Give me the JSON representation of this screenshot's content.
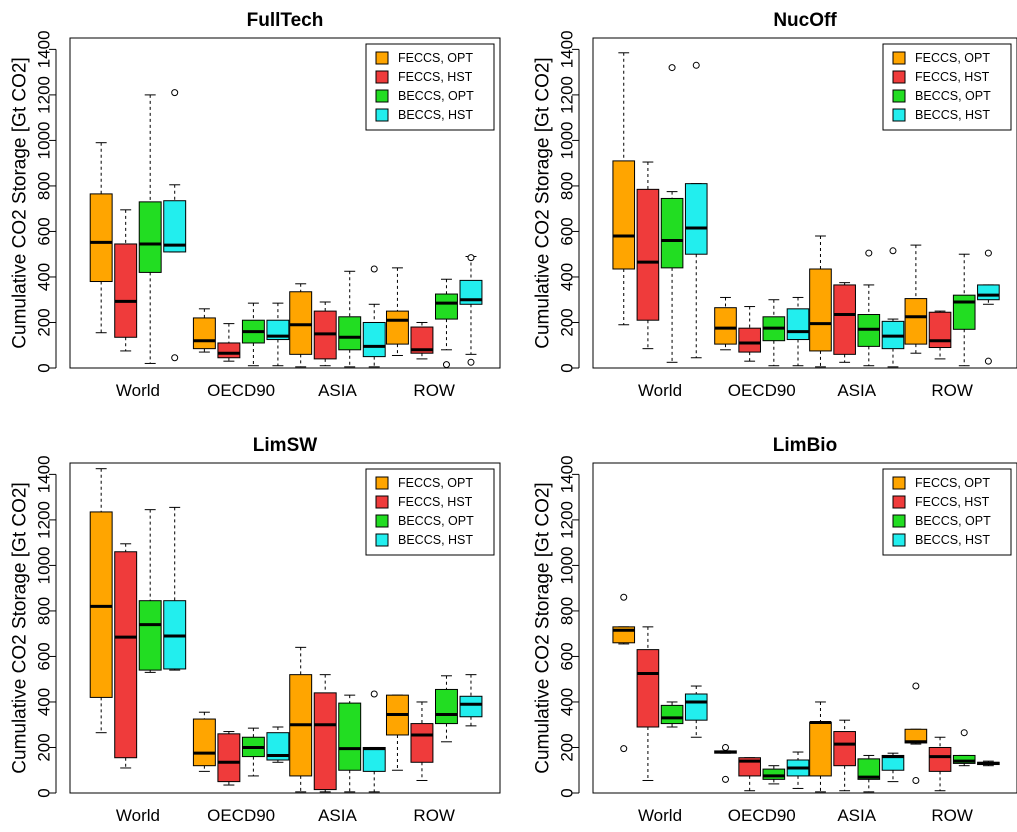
{
  "colors": {
    "FECCS, OPT": "#FFA500",
    "FECCS, HST": "#EF3B3B",
    "BECCS, OPT": "#22DD22",
    "BECCS, HST": "#22EEEE"
  },
  "chart_data": [
    {
      "type": "box",
      "title": "FullTech",
      "ylabel": "Cumulative CO2 Storage [Gt CO2]",
      "xlabel": "",
      "ylim": [
        0,
        1450
      ],
      "yticks": [
        0,
        200,
        400,
        600,
        800,
        1000,
        1200,
        1400
      ],
      "categories": [
        "World",
        "OECD90",
        "ASIA",
        "ROW"
      ],
      "legend": {
        "position": "top-right",
        "entries": [
          "FECCS, OPT",
          "FECCS, HST",
          "BECCS, OPT",
          "BECCS, HST"
        ]
      },
      "series": [
        {
          "name": "FECCS, OPT",
          "boxes": [
            {
              "min": 155,
              "q1": 380,
              "median": 552,
              "q3": 765,
              "max": 990,
              "outliers": []
            },
            {
              "min": 70,
              "q1": 85,
              "median": 120,
              "q3": 220,
              "max": 260,
              "outliers": []
            },
            {
              "min": 5,
              "q1": 60,
              "median": 190,
              "q3": 335,
              "max": 370,
              "outliers": []
            },
            {
              "min": 55,
              "q1": 105,
              "median": 210,
              "q3": 250,
              "max": 440,
              "outliers": []
            }
          ]
        },
        {
          "name": "FECCS, HST",
          "boxes": [
            {
              "min": 75,
              "q1": 135,
              "median": 293,
              "q3": 545,
              "max": 695,
              "outliers": []
            },
            {
              "min": 30,
              "q1": 45,
              "median": 65,
              "q3": 110,
              "max": 195,
              "outliers": []
            },
            {
              "min": 10,
              "q1": 40,
              "median": 150,
              "q3": 250,
              "max": 290,
              "outliers": []
            },
            {
              "min": 40,
              "q1": 65,
              "median": 80,
              "q3": 180,
              "max": 200,
              "outliers": []
            }
          ]
        },
        {
          "name": "BECCS, OPT",
          "boxes": [
            {
              "min": 20,
              "q1": 420,
              "median": 545,
              "q3": 730,
              "max": 1200,
              "outliers": []
            },
            {
              "min": 10,
              "q1": 110,
              "median": 160,
              "q3": 210,
              "max": 285,
              "outliers": []
            },
            {
              "min": 5,
              "q1": 80,
              "median": 135,
              "q3": 225,
              "max": 425,
              "outliers": []
            },
            {
              "min": 80,
              "q1": 215,
              "median": 285,
              "q3": 325,
              "max": 390,
              "outliers": [
                15
              ]
            }
          ]
        },
        {
          "name": "BECCS, HST",
          "boxes": [
            {
              "min": 510,
              "q1": 510,
              "median": 540,
              "q3": 735,
              "max": 805,
              "outliers": [
                45,
                1210
              ]
            },
            {
              "min": 10,
              "q1": 125,
              "median": 140,
              "q3": 210,
              "max": 285,
              "outliers": []
            },
            {
              "min": 5,
              "q1": 50,
              "median": 95,
              "q3": 200,
              "max": 280,
              "outliers": [
                435
              ]
            },
            {
              "min": 60,
              "q1": 280,
              "median": 300,
              "q3": 385,
              "max": 490,
              "outliers": [
                25,
                485
              ]
            }
          ]
        }
      ]
    },
    {
      "type": "box",
      "title": "NucOff",
      "ylabel": "Cumulative CO2 Storage [Gt CO2]",
      "xlabel": "",
      "ylim": [
        0,
        1450
      ],
      "yticks": [
        0,
        200,
        400,
        600,
        800,
        1000,
        1200,
        1400
      ],
      "categories": [
        "World",
        "OECD90",
        "ASIA",
        "ROW"
      ],
      "legend": {
        "position": "top-right",
        "entries": [
          "FECCS, OPT",
          "FECCS, HST",
          "BECCS, OPT",
          "BECCS, HST"
        ]
      },
      "series": [
        {
          "name": "FECCS, OPT",
          "boxes": [
            {
              "min": 190,
              "q1": 435,
              "median": 580,
              "q3": 910,
              "max": 1385,
              "outliers": []
            },
            {
              "min": 80,
              "q1": 105,
              "median": 175,
              "q3": 265,
              "max": 310,
              "outliers": []
            },
            {
              "min": 5,
              "q1": 75,
              "median": 195,
              "q3": 435,
              "max": 580,
              "outliers": []
            },
            {
              "min": 65,
              "q1": 105,
              "median": 225,
              "q3": 305,
              "max": 540,
              "outliers": []
            }
          ]
        },
        {
          "name": "FECCS, HST",
          "boxes": [
            {
              "min": 85,
              "q1": 210,
              "median": 465,
              "q3": 785,
              "max": 905,
              "outliers": []
            },
            {
              "min": 30,
              "q1": 70,
              "median": 110,
              "q3": 175,
              "max": 270,
              "outliers": []
            },
            {
              "min": 25,
              "q1": 60,
              "median": 235,
              "q3": 365,
              "max": 375,
              "outliers": []
            },
            {
              "min": 40,
              "q1": 90,
              "median": 120,
              "q3": 245,
              "max": 250,
              "outliers": []
            }
          ]
        },
        {
          "name": "BECCS, OPT",
          "boxes": [
            {
              "min": 25,
              "q1": 440,
              "median": 560,
              "q3": 745,
              "max": 775,
              "outliers": [
                1320
              ]
            },
            {
              "min": 10,
              "q1": 120,
              "median": 175,
              "q3": 225,
              "max": 300,
              "outliers": []
            },
            {
              "min": 10,
              "q1": 95,
              "median": 170,
              "q3": 235,
              "max": 365,
              "outliers": [
                505
              ]
            },
            {
              "min": 10,
              "q1": 170,
              "median": 290,
              "q3": 320,
              "max": 500,
              "outliers": []
            }
          ]
        },
        {
          "name": "BECCS, HST",
          "boxes": [
            {
              "min": 45,
              "q1": 500,
              "median": 615,
              "q3": 810,
              "max": 810,
              "outliers": [
                1330
              ]
            },
            {
              "min": 10,
              "q1": 125,
              "median": 160,
              "q3": 260,
              "max": 310,
              "outliers": []
            },
            {
              "min": 5,
              "q1": 85,
              "median": 140,
              "q3": 205,
              "max": 215,
              "outliers": [
                515
              ]
            },
            {
              "min": 280,
              "q1": 300,
              "median": 320,
              "q3": 365,
              "max": 365,
              "outliers": [
                30,
                505
              ]
            }
          ]
        }
      ]
    },
    {
      "type": "box",
      "title": "LimSW",
      "ylabel": "Cumulative CO2 Storage [Gt CO2]",
      "xlabel": "",
      "ylim": [
        0,
        1450
      ],
      "yticks": [
        0,
        200,
        400,
        600,
        800,
        1000,
        1200,
        1400
      ],
      "categories": [
        "World",
        "OECD90",
        "ASIA",
        "ROW"
      ],
      "legend": {
        "position": "top-right",
        "entries": [
          "FECCS, OPT",
          "FECCS, HST",
          "BECCS, OPT",
          "BECCS, HST"
        ]
      },
      "series": [
        {
          "name": "FECCS, OPT",
          "boxes": [
            {
              "min": 265,
              "q1": 420,
              "median": 820,
              "q3": 1235,
              "max": 1425,
              "outliers": []
            },
            {
              "min": 95,
              "q1": 120,
              "median": 175,
              "q3": 325,
              "max": 355,
              "outliers": []
            },
            {
              "min": 5,
              "q1": 75,
              "median": 300,
              "q3": 520,
              "max": 640,
              "outliers": []
            },
            {
              "min": 100,
              "q1": 255,
              "median": 345,
              "q3": 430,
              "max": 430,
              "outliers": []
            }
          ]
        },
        {
          "name": "FECCS, HST",
          "boxes": [
            {
              "min": 110,
              "q1": 155,
              "median": 685,
              "q3": 1060,
              "max": 1095,
              "outliers": []
            },
            {
              "min": 35,
              "q1": 50,
              "median": 135,
              "q3": 260,
              "max": 270,
              "outliers": []
            },
            {
              "min": 5,
              "q1": 15,
              "median": 300,
              "q3": 440,
              "max": 520,
              "outliers": []
            },
            {
              "min": 55,
              "q1": 135,
              "median": 255,
              "q3": 305,
              "max": 400,
              "outliers": []
            }
          ]
        },
        {
          "name": "BECCS, OPT",
          "boxes": [
            {
              "min": 530,
              "q1": 540,
              "median": 740,
              "q3": 845,
              "max": 1245,
              "outliers": []
            },
            {
              "min": 75,
              "q1": 160,
              "median": 200,
              "q3": 245,
              "max": 285,
              "outliers": []
            },
            {
              "min": 5,
              "q1": 100,
              "median": 195,
              "q3": 395,
              "max": 430,
              "outliers": []
            },
            {
              "min": 225,
              "q1": 305,
              "median": 345,
              "q3": 455,
              "max": 515,
              "outliers": []
            }
          ]
        },
        {
          "name": "BECCS, HST",
          "boxes": [
            {
              "min": 540,
              "q1": 545,
              "median": 690,
              "q3": 845,
              "max": 1255,
              "outliers": []
            },
            {
              "min": 135,
              "q1": 145,
              "median": 165,
              "q3": 265,
              "max": 290,
              "outliers": []
            },
            {
              "min": 5,
              "q1": 95,
              "median": 195,
              "q3": 200,
              "max": 200,
              "outliers": [
                435
              ]
            },
            {
              "min": 295,
              "q1": 335,
              "median": 390,
              "q3": 425,
              "max": 520,
              "outliers": []
            }
          ]
        }
      ]
    },
    {
      "type": "box",
      "title": "LimBio",
      "ylabel": "Cumulative CO2 Storage [Gt CO2]",
      "xlabel": "",
      "ylim": [
        0,
        1450
      ],
      "yticks": [
        0,
        200,
        400,
        600,
        800,
        1000,
        1200,
        1400
      ],
      "categories": [
        "World",
        "OECD90",
        "ASIA",
        "ROW"
      ],
      "legend": {
        "position": "top-right",
        "entries": [
          "FECCS, OPT",
          "FECCS, HST",
          "BECCS, OPT",
          "BECCS, HST"
        ]
      },
      "series": [
        {
          "name": "FECCS, OPT",
          "boxes": [
            {
              "min": 655,
              "q1": 660,
              "median": 715,
              "q3": 730,
              "max": 730,
              "outliers": [
                195,
                860
              ]
            },
            {
              "min": 175,
              "q1": 175,
              "median": 180,
              "q3": 185,
              "max": 185,
              "outliers": [
                60,
                200
              ]
            },
            {
              "min": 5,
              "q1": 75,
              "median": 310,
              "q3": 310,
              "max": 400,
              "outliers": []
            },
            {
              "min": 215,
              "q1": 220,
              "median": 225,
              "q3": 280,
              "max": 280,
              "outliers": [
                55,
                470
              ]
            }
          ]
        },
        {
          "name": "FECCS, HST",
          "boxes": [
            {
              "min": 55,
              "q1": 290,
              "median": 525,
              "q3": 630,
              "max": 730,
              "outliers": []
            },
            {
              "min": 10,
              "q1": 75,
              "median": 140,
              "q3": 155,
              "max": 155,
              "outliers": []
            },
            {
              "min": 10,
              "q1": 120,
              "median": 215,
              "q3": 270,
              "max": 320,
              "outliers": []
            },
            {
              "min": 10,
              "q1": 95,
              "median": 160,
              "q3": 200,
              "max": 245,
              "outliers": []
            }
          ]
        },
        {
          "name": "BECCS, OPT",
          "boxes": [
            {
              "min": 290,
              "q1": 305,
              "median": 330,
              "q3": 385,
              "max": 400,
              "outliers": []
            },
            {
              "min": 40,
              "q1": 60,
              "median": 75,
              "q3": 105,
              "max": 120,
              "outliers": []
            },
            {
              "min": 5,
              "q1": 60,
              "median": 70,
              "q3": 150,
              "max": 165,
              "outliers": []
            },
            {
              "min": 120,
              "q1": 130,
              "median": 140,
              "q3": 165,
              "max": 165,
              "outliers": [
                265
              ]
            }
          ]
        },
        {
          "name": "BECCS, HST",
          "boxes": [
            {
              "min": 245,
              "q1": 320,
              "median": 400,
              "q3": 435,
              "max": 470,
              "outliers": []
            },
            {
              "min": 20,
              "q1": 75,
              "median": 110,
              "q3": 145,
              "max": 180,
              "outliers": []
            },
            {
              "min": 50,
              "q1": 100,
              "median": 160,
              "q3": 165,
              "max": 175,
              "outliers": []
            },
            {
              "min": 120,
              "q1": 125,
              "median": 130,
              "q3": 135,
              "max": 140,
              "outliers": []
            }
          ]
        }
      ]
    }
  ]
}
